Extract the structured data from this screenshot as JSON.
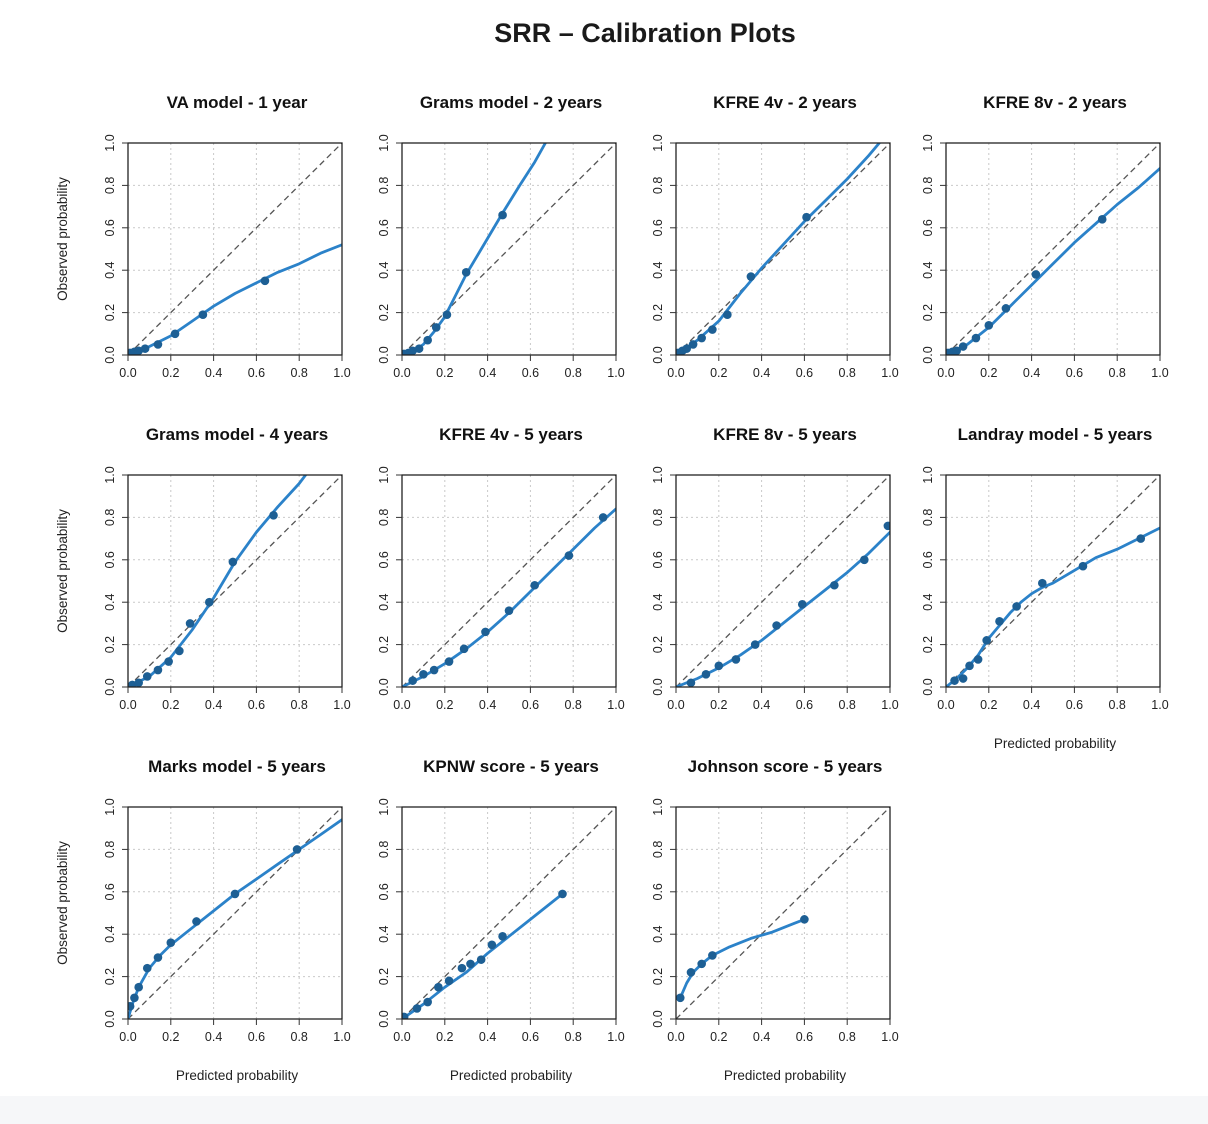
{
  "figure": {
    "title": "SRR – Calibration Plots"
  },
  "style": {
    "curve_color": "#2b82c9",
    "point_color": "#1d5f94",
    "reference_line_color": "#555555",
    "background": "#ffffff"
  },
  "chart_data": [
    {
      "type": "scatter",
      "title": "VA model - 1 year",
      "xlabel": "",
      "ylabel": "Observed probability",
      "xlim": [
        0,
        1
      ],
      "ylim": [
        0,
        1
      ],
      "ticks": [
        "0.0",
        "0.2",
        "0.4",
        "0.6",
        "0.8",
        "1.0"
      ],
      "reference_line": "y = x (dashed)",
      "grid": true,
      "points": [
        [
          0.01,
          0.01
        ],
        [
          0.03,
          0.015
        ],
        [
          0.05,
          0.02
        ],
        [
          0.08,
          0.03
        ],
        [
          0.14,
          0.05
        ],
        [
          0.22,
          0.1
        ],
        [
          0.35,
          0.19
        ],
        [
          0.64,
          0.35
        ]
      ],
      "curve": [
        [
          0.0,
          0.0
        ],
        [
          0.05,
          0.02
        ],
        [
          0.1,
          0.04
        ],
        [
          0.2,
          0.09
        ],
        [
          0.3,
          0.16
        ],
        [
          0.4,
          0.23
        ],
        [
          0.5,
          0.29
        ],
        [
          0.6,
          0.34
        ],
        [
          0.7,
          0.39
        ],
        [
          0.8,
          0.43
        ],
        [
          0.9,
          0.48
        ],
        [
          1.0,
          0.52
        ]
      ]
    },
    {
      "type": "scatter",
      "title": "Grams model - 2 years",
      "xlabel": "",
      "ylabel": "",
      "xlim": [
        0,
        1
      ],
      "ylim": [
        0,
        1
      ],
      "ticks": [
        "0.0",
        "0.2",
        "0.4",
        "0.6",
        "0.8",
        "1.0"
      ],
      "reference_line": "y = x (dashed)",
      "grid": true,
      "points": [
        [
          0.01,
          0.005
        ],
        [
          0.03,
          0.01
        ],
        [
          0.05,
          0.02
        ],
        [
          0.08,
          0.03
        ],
        [
          0.12,
          0.07
        ],
        [
          0.16,
          0.13
        ],
        [
          0.21,
          0.19
        ],
        [
          0.3,
          0.39
        ],
        [
          0.47,
          0.66
        ]
      ],
      "curve": [
        [
          0.0,
          0.0
        ],
        [
          0.05,
          0.015
        ],
        [
          0.1,
          0.05
        ],
        [
          0.15,
          0.11
        ],
        [
          0.2,
          0.18
        ],
        [
          0.25,
          0.28
        ],
        [
          0.3,
          0.38
        ],
        [
          0.4,
          0.55
        ],
        [
          0.47,
          0.67
        ],
        [
          0.55,
          0.8
        ],
        [
          0.62,
          0.91
        ],
        [
          0.67,
          1.0
        ]
      ]
    },
    {
      "type": "scatter",
      "title": "KFRE 4v - 2 years",
      "xlabel": "",
      "ylabel": "",
      "xlim": [
        0,
        1
      ],
      "ylim": [
        0,
        1
      ],
      "ticks": [
        "0.0",
        "0.2",
        "0.4",
        "0.6",
        "0.8",
        "1.0"
      ],
      "reference_line": "y = x (dashed)",
      "grid": true,
      "points": [
        [
          0.01,
          0.01
        ],
        [
          0.03,
          0.02
        ],
        [
          0.05,
          0.03
        ],
        [
          0.08,
          0.05
        ],
        [
          0.12,
          0.08
        ],
        [
          0.17,
          0.12
        ],
        [
          0.24,
          0.19
        ],
        [
          0.35,
          0.37
        ],
        [
          0.61,
          0.65
        ]
      ],
      "curve": [
        [
          0.0,
          0.0
        ],
        [
          0.1,
          0.07
        ],
        [
          0.2,
          0.16
        ],
        [
          0.3,
          0.29
        ],
        [
          0.4,
          0.41
        ],
        [
          0.5,
          0.52
        ],
        [
          0.6,
          0.63
        ],
        [
          0.7,
          0.73
        ],
        [
          0.8,
          0.83
        ],
        [
          0.9,
          0.94
        ],
        [
          0.95,
          1.0
        ]
      ]
    },
    {
      "type": "scatter",
      "title": "KFRE 8v - 2 years",
      "xlabel": "",
      "ylabel": "",
      "xlim": [
        0,
        1
      ],
      "ylim": [
        0,
        1
      ],
      "ticks": [
        "0.0",
        "0.2",
        "0.4",
        "0.6",
        "0.8",
        "1.0"
      ],
      "reference_line": "y = x (dashed)",
      "grid": true,
      "points": [
        [
          0.01,
          0.01
        ],
        [
          0.03,
          0.015
        ],
        [
          0.05,
          0.02
        ],
        [
          0.08,
          0.04
        ],
        [
          0.14,
          0.08
        ],
        [
          0.2,
          0.14
        ],
        [
          0.28,
          0.22
        ],
        [
          0.42,
          0.38
        ],
        [
          0.73,
          0.64
        ]
      ],
      "curve": [
        [
          0.0,
          0.0
        ],
        [
          0.1,
          0.05
        ],
        [
          0.2,
          0.13
        ],
        [
          0.3,
          0.23
        ],
        [
          0.4,
          0.33
        ],
        [
          0.5,
          0.43
        ],
        [
          0.6,
          0.53
        ],
        [
          0.7,
          0.62
        ],
        [
          0.8,
          0.71
        ],
        [
          0.9,
          0.79
        ],
        [
          1.0,
          0.88
        ]
      ]
    },
    {
      "type": "scatter",
      "title": "Grams model - 4 years",
      "xlabel": "",
      "ylabel": "Observed probability",
      "xlim": [
        0,
        1
      ],
      "ylim": [
        0,
        1
      ],
      "ticks": [
        "0.0",
        "0.2",
        "0.4",
        "0.6",
        "0.8",
        "1.0"
      ],
      "reference_line": "y = x (dashed)",
      "grid": true,
      "points": [
        [
          0.02,
          0.01
        ],
        [
          0.05,
          0.02
        ],
        [
          0.09,
          0.05
        ],
        [
          0.14,
          0.08
        ],
        [
          0.19,
          0.12
        ],
        [
          0.24,
          0.17
        ],
        [
          0.29,
          0.3
        ],
        [
          0.38,
          0.4
        ],
        [
          0.49,
          0.59
        ],
        [
          0.68,
          0.81
        ]
      ],
      "curve": [
        [
          0.0,
          0.0
        ],
        [
          0.1,
          0.05
        ],
        [
          0.2,
          0.14
        ],
        [
          0.3,
          0.27
        ],
        [
          0.4,
          0.42
        ],
        [
          0.5,
          0.59
        ],
        [
          0.6,
          0.73
        ],
        [
          0.7,
          0.85
        ],
        [
          0.8,
          0.96
        ],
        [
          0.83,
          1.0
        ]
      ]
    },
    {
      "type": "scatter",
      "title": "KFRE 4v - 5 years",
      "xlabel": "",
      "ylabel": "",
      "xlim": [
        0,
        1
      ],
      "ylim": [
        0,
        1
      ],
      "ticks": [
        "0.0",
        "0.2",
        "0.4",
        "0.6",
        "0.8",
        "1.0"
      ],
      "reference_line": "y = x (dashed)",
      "grid": true,
      "points": [
        [
          0.05,
          0.03
        ],
        [
          0.1,
          0.06
        ],
        [
          0.15,
          0.08
        ],
        [
          0.22,
          0.12
        ],
        [
          0.29,
          0.18
        ],
        [
          0.39,
          0.26
        ],
        [
          0.5,
          0.36
        ],
        [
          0.62,
          0.48
        ],
        [
          0.78,
          0.62
        ],
        [
          0.94,
          0.8
        ]
      ],
      "curve": [
        [
          0.0,
          0.0
        ],
        [
          0.1,
          0.05
        ],
        [
          0.2,
          0.11
        ],
        [
          0.3,
          0.18
        ],
        [
          0.4,
          0.26
        ],
        [
          0.5,
          0.35
        ],
        [
          0.6,
          0.45
        ],
        [
          0.7,
          0.55
        ],
        [
          0.8,
          0.65
        ],
        [
          0.9,
          0.75
        ],
        [
          1.0,
          0.84
        ]
      ]
    },
    {
      "type": "scatter",
      "title": "KFRE 8v - 5 years",
      "xlabel": "",
      "ylabel": "",
      "xlim": [
        0,
        1
      ],
      "ylim": [
        0,
        1
      ],
      "ticks": [
        "0.0",
        "0.2",
        "0.4",
        "0.6",
        "0.8",
        "1.0"
      ],
      "reference_line": "y = x (dashed)",
      "grid": true,
      "points": [
        [
          0.07,
          0.02
        ],
        [
          0.14,
          0.06
        ],
        [
          0.2,
          0.1
        ],
        [
          0.28,
          0.13
        ],
        [
          0.37,
          0.2
        ],
        [
          0.47,
          0.29
        ],
        [
          0.59,
          0.39
        ],
        [
          0.74,
          0.48
        ],
        [
          0.88,
          0.6
        ],
        [
          0.99,
          0.76
        ]
      ],
      "curve": [
        [
          0.0,
          0.0
        ],
        [
          0.1,
          0.04
        ],
        [
          0.2,
          0.09
        ],
        [
          0.3,
          0.15
        ],
        [
          0.4,
          0.22
        ],
        [
          0.5,
          0.3
        ],
        [
          0.6,
          0.38
        ],
        [
          0.7,
          0.46
        ],
        [
          0.8,
          0.54
        ],
        [
          0.9,
          0.63
        ],
        [
          1.0,
          0.73
        ]
      ]
    },
    {
      "type": "scatter",
      "title": "Landray model - 5 years",
      "xlabel": "Predicted probability",
      "ylabel": "",
      "xlim": [
        0,
        1
      ],
      "ylim": [
        0,
        1
      ],
      "ticks": [
        "0.0",
        "0.2",
        "0.4",
        "0.6",
        "0.8",
        "1.0"
      ],
      "reference_line": "y = x (dashed)",
      "grid": true,
      "points": [
        [
          0.04,
          0.03
        ],
        [
          0.08,
          0.04
        ],
        [
          0.11,
          0.1
        ],
        [
          0.15,
          0.13
        ],
        [
          0.19,
          0.22
        ],
        [
          0.25,
          0.31
        ],
        [
          0.33,
          0.38
        ],
        [
          0.45,
          0.49
        ],
        [
          0.64,
          0.57
        ],
        [
          0.91,
          0.7
        ]
      ],
      "curve": [
        [
          0.0,
          0.0
        ],
        [
          0.05,
          0.04
        ],
        [
          0.1,
          0.09
        ],
        [
          0.15,
          0.15
        ],
        [
          0.2,
          0.23
        ],
        [
          0.25,
          0.29
        ],
        [
          0.3,
          0.35
        ],
        [
          0.35,
          0.4
        ],
        [
          0.4,
          0.44
        ],
        [
          0.45,
          0.47
        ],
        [
          0.5,
          0.49
        ],
        [
          0.6,
          0.55
        ],
        [
          0.7,
          0.61
        ],
        [
          0.8,
          0.65
        ],
        [
          0.9,
          0.7
        ],
        [
          1.0,
          0.75
        ]
      ]
    },
    {
      "type": "scatter",
      "title": "Marks model - 5 years",
      "xlabel": "Predicted probability",
      "ylabel": "Observed probability",
      "xlim": [
        0,
        1
      ],
      "ylim": [
        0,
        1
      ],
      "ticks": [
        "0.0",
        "0.2",
        "0.4",
        "0.6",
        "0.8",
        "1.0"
      ],
      "reference_line": "y = x (dashed)",
      "grid": true,
      "points": [
        [
          0.01,
          0.06
        ],
        [
          0.03,
          0.1
        ],
        [
          0.05,
          0.15
        ],
        [
          0.09,
          0.24
        ],
        [
          0.14,
          0.29
        ],
        [
          0.2,
          0.36
        ],
        [
          0.32,
          0.46
        ],
        [
          0.5,
          0.59
        ],
        [
          0.79,
          0.8
        ]
      ],
      "curve": [
        [
          0.0,
          0.0
        ],
        [
          0.02,
          0.07
        ],
        [
          0.05,
          0.15
        ],
        [
          0.1,
          0.24
        ],
        [
          0.15,
          0.3
        ],
        [
          0.2,
          0.35
        ],
        [
          0.3,
          0.43
        ],
        [
          0.4,
          0.51
        ],
        [
          0.5,
          0.59
        ],
        [
          0.6,
          0.66
        ],
        [
          0.7,
          0.73
        ],
        [
          0.8,
          0.8
        ],
        [
          0.9,
          0.87
        ],
        [
          1.0,
          0.94
        ]
      ]
    },
    {
      "type": "scatter",
      "title": "KPNW score - 5 years",
      "xlabel": "Predicted probability",
      "ylabel": "",
      "xlim": [
        0,
        1
      ],
      "ylim": [
        0,
        1
      ],
      "ticks": [
        "0.0",
        "0.2",
        "0.4",
        "0.6",
        "0.8",
        "1.0"
      ],
      "reference_line": "y = x (dashed)",
      "grid": true,
      "points": [
        [
          0.01,
          0.01
        ],
        [
          0.07,
          0.05
        ],
        [
          0.12,
          0.08
        ],
        [
          0.17,
          0.15
        ],
        [
          0.22,
          0.18
        ],
        [
          0.28,
          0.24
        ],
        [
          0.32,
          0.26
        ],
        [
          0.37,
          0.28
        ],
        [
          0.42,
          0.35
        ],
        [
          0.47,
          0.39
        ],
        [
          0.75,
          0.59
        ]
      ],
      "curve": [
        [
          0.0,
          0.0
        ],
        [
          0.1,
          0.07
        ],
        [
          0.2,
          0.15
        ],
        [
          0.3,
          0.22
        ],
        [
          0.4,
          0.31
        ],
        [
          0.5,
          0.39
        ],
        [
          0.6,
          0.47
        ],
        [
          0.7,
          0.55
        ],
        [
          0.75,
          0.59
        ]
      ]
    },
    {
      "type": "scatter",
      "title": "Johnson score - 5 years",
      "xlabel": "Predicted probability",
      "ylabel": "",
      "xlim": [
        0,
        1
      ],
      "ylim": [
        0,
        1
      ],
      "ticks": [
        "0.0",
        "0.2",
        "0.4",
        "0.6",
        "0.8",
        "1.0"
      ],
      "reference_line": "y = x (dashed)",
      "grid": true,
      "points": [
        [
          0.02,
          0.1
        ],
        [
          0.07,
          0.22
        ],
        [
          0.12,
          0.26
        ],
        [
          0.17,
          0.3
        ],
        [
          0.6,
          0.47
        ]
      ],
      "curve": [
        [
          0.02,
          0.1
        ],
        [
          0.05,
          0.17
        ],
        [
          0.08,
          0.22
        ],
        [
          0.12,
          0.26
        ],
        [
          0.17,
          0.3
        ],
        [
          0.25,
          0.34
        ],
        [
          0.35,
          0.38
        ],
        [
          0.45,
          0.41
        ],
        [
          0.55,
          0.45
        ],
        [
          0.6,
          0.47
        ]
      ]
    }
  ]
}
